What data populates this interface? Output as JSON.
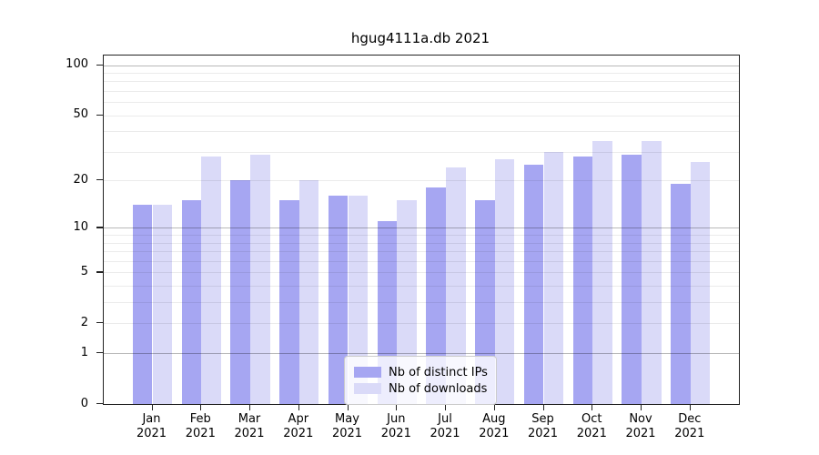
{
  "title": "hgug4111a.db 2021",
  "chart_data": {
    "type": "bar",
    "title": "hgug4111a.db 2021",
    "categories": [
      "Jan",
      "Feb",
      "Mar",
      "Apr",
      "May",
      "Jun",
      "Jul",
      "Aug",
      "Sep",
      "Oct",
      "Nov",
      "Dec"
    ],
    "category_year": "2021",
    "series": [
      {
        "name": "Nb of distinct IPs",
        "color": "#a6a6f2",
        "values": [
          14,
          15,
          20,
          15,
          16,
          11,
          18,
          15,
          25,
          28,
          29,
          19
        ]
      },
      {
        "name": "Nb of downloads",
        "color": "#dadaf8",
        "values": [
          14,
          28,
          29,
          20,
          16,
          15,
          24,
          27,
          30,
          35,
          35,
          26
        ]
      }
    ],
    "xlabel": "",
    "ylabel": "",
    "yscale": "log1p",
    "yticks": [
      100,
      50,
      20,
      10,
      5,
      2,
      1,
      0
    ],
    "minor_gridlines": [
      2,
      3,
      4,
      5,
      6,
      7,
      8,
      9,
      20,
      30,
      40,
      50,
      60,
      70,
      80,
      90
    ],
    "major_gridlines": [
      1,
      10,
      100
    ],
    "ylim": [
      0,
      114
    ],
    "grid": true,
    "legend_position": "lower-center"
  }
}
